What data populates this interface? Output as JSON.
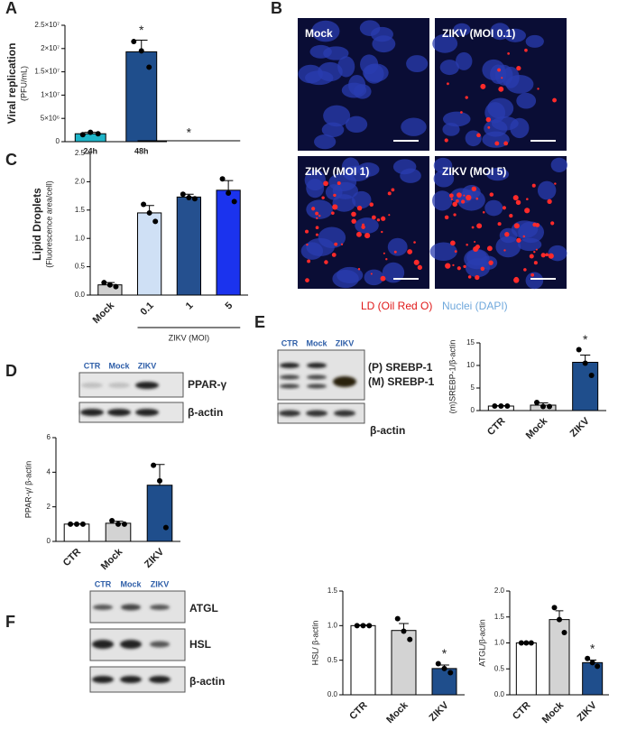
{
  "chart_data": [
    {
      "type": "bar",
      "ylabel": "Viral replication",
      "ylabel_sub": "(PFU/mL)",
      "categories": [
        "24h",
        "48h"
      ],
      "values": [
        1700000,
        19300000
      ],
      "errors": [
        300000,
        2500000
      ],
      "points": [
        [
          1500000,
          2000000,
          1700000
        ],
        [
          21500000,
          19500000,
          16000000
        ]
      ],
      "colors": [
        "#1fb5c9",
        "#1f4e8c"
      ],
      "significance": [
        null,
        "*"
      ],
      "ylim": [
        0,
        25000000
      ],
      "yticks": [
        0,
        {
          "value": 5000000,
          "label": "5×10⁶"
        },
        {
          "value": 10000000,
          "label": "1×10⁷"
        },
        {
          "value": 15000000,
          "label": "1.5×10⁷"
        },
        {
          "value": 20000000,
          "label": "2×10⁷"
        },
        {
          "value": 25000000,
          "label": "2.5×10⁷"
        }
      ]
    },
    {
      "type": "bar",
      "ylabel": "Lipid Droplets",
      "ylabel_sub": "(Fluorescence area/cell)",
      "categories": [
        "Mock",
        "0.1",
        "1",
        "5"
      ],
      "values": [
        0.18,
        1.45,
        1.73,
        1.85
      ],
      "errors": [
        0.04,
        0.13,
        0.05,
        0.17
      ],
      "points": [
        [
          0.22,
          0.18,
          0.15
        ],
        [
          1.6,
          1.45,
          1.3
        ],
        [
          1.78,
          1.72,
          1.7
        ],
        [
          2.05,
          1.8,
          1.65
        ]
      ],
      "colors": [
        "#d0d0d0",
        "#cfe0f5",
        "#25508f",
        "#1b33ee"
      ],
      "group_label": "ZIKV (MOI)",
      "annotation": "*",
      "ylim": [
        0,
        2.5
      ],
      "yticks": [
        {
          "value": 0,
          "label": "0.0"
        },
        0.5,
        {
          "value": 1,
          "label": "1.0"
        },
        1.5,
        {
          "value": 2,
          "label": "2.0"
        },
        2.5
      ]
    },
    {
      "type": "bar",
      "ylabel": "PPAR-γ/ β-actin",
      "categories": [
        "CTR",
        "Mock",
        "ZIKV"
      ],
      "values": [
        1,
        1.05,
        3.25
      ],
      "errors": [
        0.02,
        0.12,
        1.2
      ],
      "points": [
        [
          1,
          1,
          1
        ],
        [
          1.2,
          1,
          1
        ],
        [
          4.4,
          3.5,
          0.8
        ]
      ],
      "colors": [
        "#ffffff",
        "#d3d3d3",
        "#1f4e8c"
      ],
      "ylim": [
        0,
        6
      ],
      "yticks": [
        0,
        2,
        4,
        6
      ]
    },
    {
      "type": "bar",
      "ylabel": "(m)SREBP-1/β-actin",
      "categories": [
        "CTR",
        "Mock",
        "ZIKV"
      ],
      "values": [
        1,
        1.2,
        10.7
      ],
      "errors": [
        0.1,
        0.5,
        1.6
      ],
      "points": [
        [
          1,
          1,
          1
        ],
        [
          1.8,
          0.9,
          0.9
        ],
        [
          13.5,
          10.5,
          7.8
        ]
      ],
      "colors": [
        "#ffffff",
        "#d3d3d3",
        "#1f4e8c"
      ],
      "significance": [
        null,
        null,
        "*"
      ],
      "ylim": [
        0,
        15
      ],
      "yticks": [
        0,
        5,
        10,
        15
      ]
    },
    {
      "type": "bar",
      "ylabel": "HSL/ β-actin",
      "categories": [
        "CTR",
        "Mock",
        "ZIKV"
      ],
      "values": [
        1,
        0.93,
        0.38
      ],
      "errors": [
        0.01,
        0.1,
        0.05
      ],
      "points": [
        [
          1,
          1,
          1
        ],
        [
          1.1,
          0.92,
          0.8
        ],
        [
          0.45,
          0.38,
          0.32
        ]
      ],
      "colors": [
        "#ffffff",
        "#d3d3d3",
        "#1f4e8c"
      ],
      "significance": [
        null,
        null,
        "*"
      ],
      "ylim": [
        0,
        1.5
      ],
      "yticks": [
        {
          "value": 0,
          "label": "0.0"
        },
        0.5,
        {
          "value": 1,
          "label": "1.0"
        },
        1.5
      ]
    },
    {
      "type": "bar",
      "ylabel": "ATGL/β-actin",
      "categories": [
        "CTR",
        "Mock",
        "ZIKV"
      ],
      "values": [
        1,
        1.45,
        0.62
      ],
      "errors": [
        0.01,
        0.17,
        0.05
      ],
      "points": [
        [
          1,
          1,
          1
        ],
        [
          1.68,
          1.45,
          1.2
        ],
        [
          0.7,
          0.62,
          0.55
        ]
      ],
      "colors": [
        "#ffffff",
        "#d3d3d3",
        "#1f4e8c"
      ],
      "significance": [
        null,
        null,
        "*"
      ],
      "ylim": [
        0,
        2
      ],
      "yticks": [
        {
          "value": 0,
          "label": "0.0"
        },
        0.5,
        {
          "value": 1,
          "label": "1.0"
        },
        1.5,
        {
          "value": 2,
          "label": "2.0"
        }
      ]
    }
  ],
  "figure": {
    "panels": [
      "A",
      "B",
      "C",
      "D",
      "E",
      "F"
    ],
    "microscopy": {
      "labels": [
        "Mock",
        "ZIKV (MOI 0.1)",
        "ZIKV (MOI 1)",
        "ZIKV (MOI 5)"
      ],
      "legend": [
        "LD (Oil Red O)",
        "Nuclei (DAPI)"
      ]
    },
    "blot_d": {
      "lanes": [
        "CTR",
        "Mock",
        "ZIKV"
      ],
      "bands": [
        "PPAR-γ",
        "β-actin"
      ]
    },
    "blot_e": {
      "lanes": [
        "CTR",
        "Mock",
        "ZIKV"
      ],
      "bands": [
        "(P) SREBP-1",
        "(M) SREBP-1",
        "β-actin"
      ]
    },
    "blot_f": {
      "lanes": [
        "CTR",
        "Mock",
        "ZIKV"
      ],
      "bands": [
        "ATGL",
        "HSL",
        "β-actin"
      ]
    }
  }
}
